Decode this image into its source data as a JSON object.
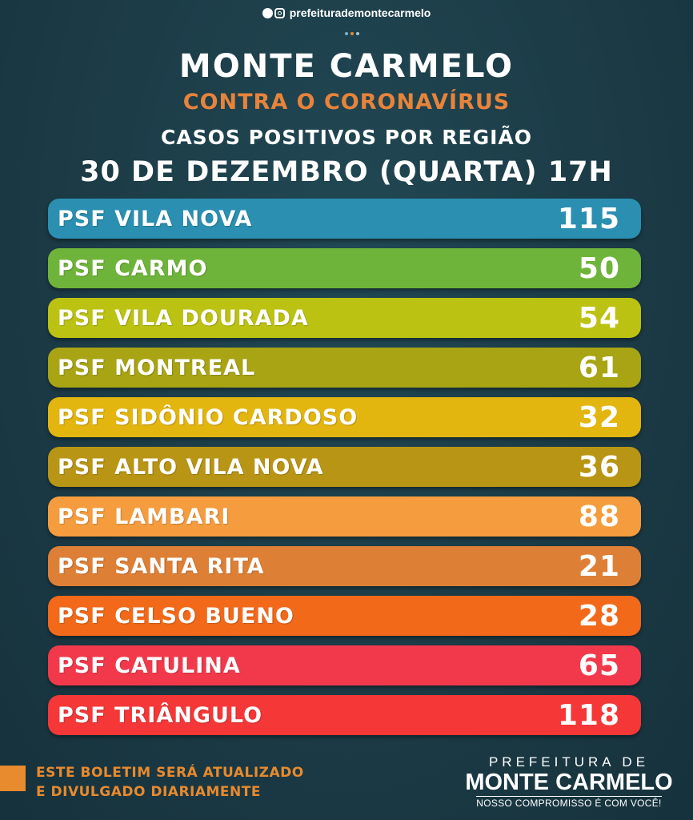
{
  "social": {
    "handle": "prefeiturademontecarmelo",
    "icons": [
      "facebook-icon",
      "instagram-icon"
    ]
  },
  "header": {
    "title": "MONTE CARMELO",
    "subtitle": "CONTRA O CORONAVÍRUS",
    "heading": "CASOS POSITIVOS POR REGIÃO",
    "date": "30 DE DEZEMBRO (QUARTA) 17H"
  },
  "regions": [
    {
      "label": "PSF VILA NOVA",
      "value": "115",
      "color": "#2a8fb0"
    },
    {
      "label": "PSF CARMO",
      "value": "50",
      "color": "#6fb43a"
    },
    {
      "label": "PSF VILA DOURADA",
      "value": "54",
      "color": "#bcc212"
    },
    {
      "label": "PSF MONTREAL",
      "value": "61",
      "color": "#a8a414"
    },
    {
      "label": "PSF SIDÔNIO CARDOSO",
      "value": "32",
      "color": "#e3b50f"
    },
    {
      "label": "PSF ALTO VILA NOVA",
      "value": "36",
      "color": "#b99515"
    },
    {
      "label": "PSF LAMBARI",
      "value": "88",
      "color": "#f59c3e"
    },
    {
      "label": "PSF SANTA RITA",
      "value": "21",
      "color": "#de7f36"
    },
    {
      "label": "PSF CELSO BUENO",
      "value": "28",
      "color": "#f2691a"
    },
    {
      "label": "PSF CATULINA",
      "value": "65",
      "color": "#f2394c"
    },
    {
      "label": "PSF TRIÂNGULO",
      "value": "118",
      "color": "#f53737"
    }
  ],
  "footer": {
    "note_line1": "ESTE BOLETIM SERÁ ATUALIZADO",
    "note_line2": "E DIVULGADO DIARIAMENTE",
    "logo_top": "PREFEITURA DE",
    "logo_main": "MONTE CARMELO",
    "logo_bottom": "NOSSO COMPROMISSO É COM VOCÊ!"
  }
}
